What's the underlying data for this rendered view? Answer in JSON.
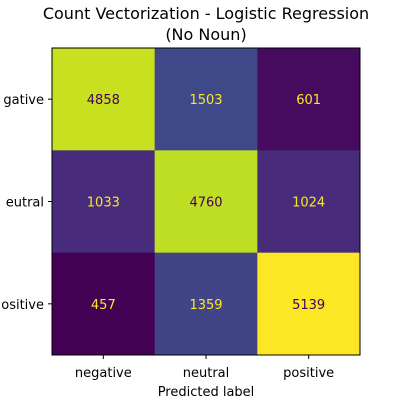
{
  "chart_data": {
    "type": "heatmap",
    "title": "Count Vectorization - Logistic Regression",
    "subtitle": "(No Noun)",
    "xlabel": "Predicted label",
    "ylabel": "",
    "x_categories": [
      "negative",
      "neutral",
      "positive"
    ],
    "y_tick_labels": [
      "gative",
      "eutral",
      "ositive"
    ],
    "matrix": [
      [
        4858,
        1503,
        601
      ],
      [
        1033,
        4760,
        1024
      ],
      [
        457,
        1359,
        5139
      ]
    ],
    "colormap": "viridis",
    "cell_fills": [
      [
        "#c7e020",
        "#3f4889",
        "#460b5e"
      ],
      [
        "#482c7b",
        "#bfdf25",
        "#482c7b"
      ],
      [
        "#440154",
        "#414487",
        "#fde725"
      ]
    ],
    "text_colors": {
      "dark_cell": "#fde725",
      "light_cell": "#440154"
    },
    "grid": false
  }
}
